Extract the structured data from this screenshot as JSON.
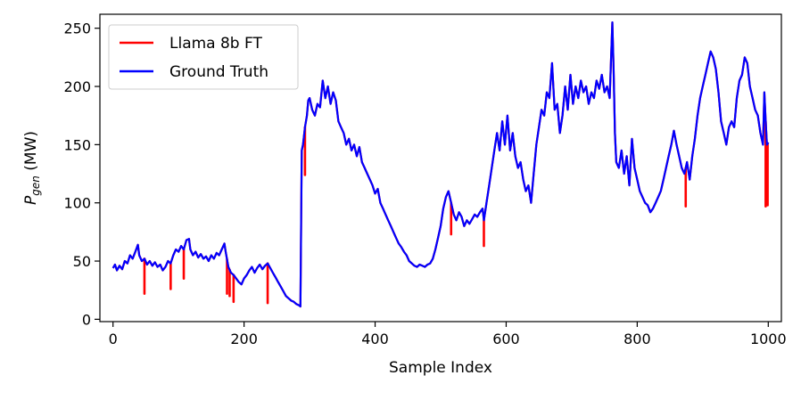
{
  "chart_data": {
    "type": "line",
    "title": "",
    "xlabel": "Sample Index",
    "ylabel_main": "P",
    "ylabel_sub": "gen",
    "ylabel_unit": " (MW)",
    "xlim": [
      -20,
      1020
    ],
    "ylim": [
      -2,
      262
    ],
    "xticks": [
      0,
      200,
      400,
      600,
      800,
      1000
    ],
    "yticks": [
      0,
      50,
      100,
      150,
      200,
      250
    ],
    "legend_position": "top-left",
    "grid": false,
    "series": [
      {
        "name": "Llama 8b FT",
        "color": "#ff0000",
        "spikes": [
          {
            "x": 48,
            "y": 22
          },
          {
            "x": 88,
            "y": 26
          },
          {
            "x": 108,
            "y": 35
          },
          {
            "x": 174,
            "y": 22
          },
          {
            "x": 178,
            "y": 20
          },
          {
            "x": 184,
            "y": 15
          },
          {
            "x": 236,
            "y": 14
          },
          {
            "x": 293,
            "y": 124
          },
          {
            "x": 516,
            "y": 73
          },
          {
            "x": 566,
            "y": 63
          },
          {
            "x": 874,
            "y": 97
          },
          {
            "x": 996,
            "y": 97
          },
          {
            "x": 999,
            "y": 98
          }
        ]
      },
      {
        "name": "Ground Truth",
        "color": "#0000ff",
        "points": [
          [
            0,
            44
          ],
          [
            3,
            47
          ],
          [
            6,
            42
          ],
          [
            10,
            46
          ],
          [
            14,
            43
          ],
          [
            18,
            50
          ],
          [
            22,
            48
          ],
          [
            26,
            55
          ],
          [
            30,
            52
          ],
          [
            34,
            58
          ],
          [
            38,
            64
          ],
          [
            40,
            55
          ],
          [
            44,
            50
          ],
          [
            48,
            52
          ],
          [
            52,
            47
          ],
          [
            56,
            50
          ],
          [
            60,
            46
          ],
          [
            64,
            49
          ],
          [
            68,
            45
          ],
          [
            72,
            47
          ],
          [
            76,
            42
          ],
          [
            80,
            45
          ],
          [
            84,
            50
          ],
          [
            88,
            48
          ],
          [
            92,
            55
          ],
          [
            96,
            60
          ],
          [
            100,
            58
          ],
          [
            104,
            63
          ],
          [
            108,
            60
          ],
          [
            112,
            68
          ],
          [
            116,
            69
          ],
          [
            118,
            60
          ],
          [
            122,
            55
          ],
          [
            126,
            58
          ],
          [
            130,
            53
          ],
          [
            134,
            56
          ],
          [
            138,
            52
          ],
          [
            142,
            54
          ],
          [
            146,
            50
          ],
          [
            150,
            55
          ],
          [
            154,
            52
          ],
          [
            158,
            57
          ],
          [
            162,
            55
          ],
          [
            166,
            60
          ],
          [
            170,
            65
          ],
          [
            172,
            58
          ],
          [
            176,
            45
          ],
          [
            180,
            40
          ],
          [
            184,
            38
          ],
          [
            188,
            35
          ],
          [
            192,
            32
          ],
          [
            196,
            30
          ],
          [
            200,
            35
          ],
          [
            204,
            38
          ],
          [
            208,
            42
          ],
          [
            212,
            45
          ],
          [
            216,
            40
          ],
          [
            220,
            44
          ],
          [
            224,
            47
          ],
          [
            228,
            43
          ],
          [
            232,
            46
          ],
          [
            236,
            48
          ],
          [
            240,
            44
          ],
          [
            244,
            40
          ],
          [
            248,
            36
          ],
          [
            252,
            32
          ],
          [
            256,
            28
          ],
          [
            260,
            24
          ],
          [
            264,
            20
          ],
          [
            268,
            18
          ],
          [
            272,
            16
          ],
          [
            276,
            15
          ],
          [
            280,
            13
          ],
          [
            284,
            12
          ],
          [
            286,
            11
          ],
          [
            288,
            145
          ],
          [
            290,
            150
          ],
          [
            293,
            165
          ],
          [
            296,
            175
          ],
          [
            298,
            188
          ],
          [
            300,
            190
          ],
          [
            304,
            180
          ],
          [
            308,
            175
          ],
          [
            312,
            185
          ],
          [
            316,
            182
          ],
          [
            320,
            205
          ],
          [
            324,
            190
          ],
          [
            328,
            200
          ],
          [
            332,
            185
          ],
          [
            336,
            195
          ],
          [
            340,
            188
          ],
          [
            344,
            170
          ],
          [
            348,
            165
          ],
          [
            352,
            160
          ],
          [
            356,
            150
          ],
          [
            360,
            155
          ],
          [
            364,
            145
          ],
          [
            368,
            150
          ],
          [
            372,
            140
          ],
          [
            376,
            148
          ],
          [
            380,
            135
          ],
          [
            384,
            130
          ],
          [
            388,
            125
          ],
          [
            392,
            120
          ],
          [
            396,
            115
          ],
          [
            400,
            108
          ],
          [
            404,
            112
          ],
          [
            408,
            100
          ],
          [
            412,
            95
          ],
          [
            416,
            90
          ],
          [
            420,
            85
          ],
          [
            424,
            80
          ],
          [
            428,
            75
          ],
          [
            432,
            70
          ],
          [
            436,
            65
          ],
          [
            440,
            62
          ],
          [
            444,
            58
          ],
          [
            448,
            55
          ],
          [
            452,
            50
          ],
          [
            456,
            48
          ],
          [
            460,
            46
          ],
          [
            464,
            45
          ],
          [
            468,
            47
          ],
          [
            472,
            46
          ],
          [
            476,
            45
          ],
          [
            480,
            47
          ],
          [
            484,
            48
          ],
          [
            488,
            52
          ],
          [
            492,
            60
          ],
          [
            496,
            70
          ],
          [
            500,
            80
          ],
          [
            504,
            95
          ],
          [
            508,
            105
          ],
          [
            512,
            110
          ],
          [
            516,
            100
          ],
          [
            520,
            90
          ],
          [
            524,
            85
          ],
          [
            528,
            92
          ],
          [
            532,
            88
          ],
          [
            536,
            80
          ],
          [
            540,
            85
          ],
          [
            544,
            82
          ],
          [
            548,
            86
          ],
          [
            552,
            90
          ],
          [
            556,
            88
          ],
          [
            560,
            92
          ],
          [
            564,
            95
          ],
          [
            566,
            85
          ],
          [
            570,
            100
          ],
          [
            574,
            115
          ],
          [
            578,
            130
          ],
          [
            582,
            145
          ],
          [
            586,
            160
          ],
          [
            590,
            145
          ],
          [
            594,
            170
          ],
          [
            598,
            150
          ],
          [
            602,
            175
          ],
          [
            606,
            145
          ],
          [
            610,
            160
          ],
          [
            614,
            140
          ],
          [
            618,
            130
          ],
          [
            622,
            135
          ],
          [
            626,
            120
          ],
          [
            630,
            110
          ],
          [
            634,
            115
          ],
          [
            638,
            100
          ],
          [
            642,
            125
          ],
          [
            646,
            150
          ],
          [
            650,
            165
          ],
          [
            654,
            180
          ],
          [
            658,
            175
          ],
          [
            662,
            195
          ],
          [
            666,
            190
          ],
          [
            670,
            220
          ],
          [
            674,
            180
          ],
          [
            678,
            185
          ],
          [
            682,
            160
          ],
          [
            686,
            175
          ],
          [
            690,
            200
          ],
          [
            694,
            180
          ],
          [
            698,
            210
          ],
          [
            702,
            185
          ],
          [
            706,
            200
          ],
          [
            710,
            190
          ],
          [
            714,
            205
          ],
          [
            718,
            195
          ],
          [
            722,
            200
          ],
          [
            726,
            185
          ],
          [
            730,
            195
          ],
          [
            734,
            190
          ],
          [
            738,
            205
          ],
          [
            742,
            198
          ],
          [
            746,
            210
          ],
          [
            750,
            195
          ],
          [
            754,
            200
          ],
          [
            758,
            190
          ],
          [
            762,
            255
          ],
          [
            764,
            215
          ],
          [
            766,
            160
          ],
          [
            768,
            135
          ],
          [
            772,
            130
          ],
          [
            776,
            145
          ],
          [
            780,
            125
          ],
          [
            784,
            140
          ],
          [
            788,
            115
          ],
          [
            792,
            155
          ],
          [
            796,
            130
          ],
          [
            800,
            120
          ],
          [
            804,
            110
          ],
          [
            808,
            105
          ],
          [
            812,
            100
          ],
          [
            816,
            98
          ],
          [
            820,
            92
          ],
          [
            824,
            95
          ],
          [
            828,
            100
          ],
          [
            832,
            105
          ],
          [
            836,
            110
          ],
          [
            840,
            120
          ],
          [
            844,
            130
          ],
          [
            848,
            140
          ],
          [
            852,
            150
          ],
          [
            856,
            162
          ],
          [
            860,
            150
          ],
          [
            864,
            140
          ],
          [
            868,
            130
          ],
          [
            872,
            125
          ],
          [
            876,
            135
          ],
          [
            880,
            120
          ],
          [
            884,
            140
          ],
          [
            888,
            155
          ],
          [
            892,
            175
          ],
          [
            896,
            190
          ],
          [
            900,
            200
          ],
          [
            904,
            210
          ],
          [
            908,
            220
          ],
          [
            912,
            230
          ],
          [
            916,
            225
          ],
          [
            920,
            215
          ],
          [
            924,
            195
          ],
          [
            928,
            170
          ],
          [
            932,
            160
          ],
          [
            936,
            150
          ],
          [
            940,
            165
          ],
          [
            944,
            170
          ],
          [
            948,
            165
          ],
          [
            952,
            190
          ],
          [
            956,
            205
          ],
          [
            960,
            210
          ],
          [
            964,
            225
          ],
          [
            968,
            220
          ],
          [
            972,
            200
          ],
          [
            976,
            190
          ],
          [
            980,
            180
          ],
          [
            984,
            175
          ],
          [
            988,
            160
          ],
          [
            992,
            150
          ],
          [
            994,
            195
          ],
          [
            996,
            170
          ],
          [
            998,
            150
          ],
          [
            1000,
            152
          ]
        ]
      }
    ]
  }
}
